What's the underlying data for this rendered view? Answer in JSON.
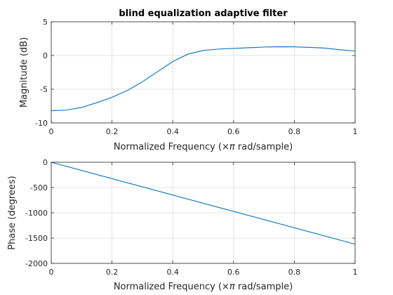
{
  "chart_data": [
    {
      "type": "line",
      "title": "blind equalization adaptive filter",
      "xlabel_prefix": "Normalized Frequency  (",
      "xlabel_math": "×π",
      "xlabel_suffix": " rad/sample)",
      "ylabel": "Magnitude (dB)",
      "xlim": [
        0,
        1
      ],
      "ylim": [
        -10,
        5
      ],
      "xticks": [
        0,
        0.2,
        0.4,
        0.6,
        0.8,
        1
      ],
      "xtick_labels": [
        "0",
        "0.2",
        "0.4",
        "0.6",
        "0.8",
        "1"
      ],
      "yticks": [
        -10,
        -5,
        0,
        5
      ],
      "ytick_labels": [
        "-10",
        "-5",
        "0",
        "5"
      ],
      "grid": true,
      "series": [
        {
          "color": "#0072bd",
          "x": [
            0,
            0.05,
            0.1,
            0.15,
            0.2,
            0.25,
            0.3,
            0.35,
            0.4,
            0.45,
            0.5,
            0.55,
            0.6,
            0.65,
            0.7,
            0.75,
            0.8,
            0.85,
            0.9,
            0.95,
            1.0
          ],
          "y": [
            -8.2,
            -8.1,
            -7.7,
            -7.0,
            -6.2,
            -5.2,
            -3.9,
            -2.4,
            -0.9,
            0.2,
            0.75,
            0.95,
            1.05,
            1.15,
            1.25,
            1.3,
            1.28,
            1.2,
            1.1,
            0.85,
            0.65
          ]
        }
      ]
    },
    {
      "type": "line",
      "title": "",
      "xlabel_prefix": "Normalized Frequency  (",
      "xlabel_math": "×π",
      "xlabel_suffix": " rad/sample)",
      "ylabel": "Phase (degrees)",
      "xlim": [
        0,
        1
      ],
      "ylim": [
        -2000,
        0
      ],
      "xticks": [
        0,
        0.2,
        0.4,
        0.6,
        0.8,
        1
      ],
      "xtick_labels": [
        "0",
        "0.2",
        "0.4",
        "0.6",
        "0.8",
        "1"
      ],
      "yticks": [
        -2000,
        -1500,
        -1000,
        -500,
        0
      ],
      "ytick_labels": [
        "-2000",
        "-1500",
        "-1000",
        "-500",
        "0"
      ],
      "grid": true,
      "series": [
        {
          "color": "#0072bd",
          "x": [
            0,
            1
          ],
          "y": [
            0,
            -1620
          ]
        }
      ]
    }
  ]
}
